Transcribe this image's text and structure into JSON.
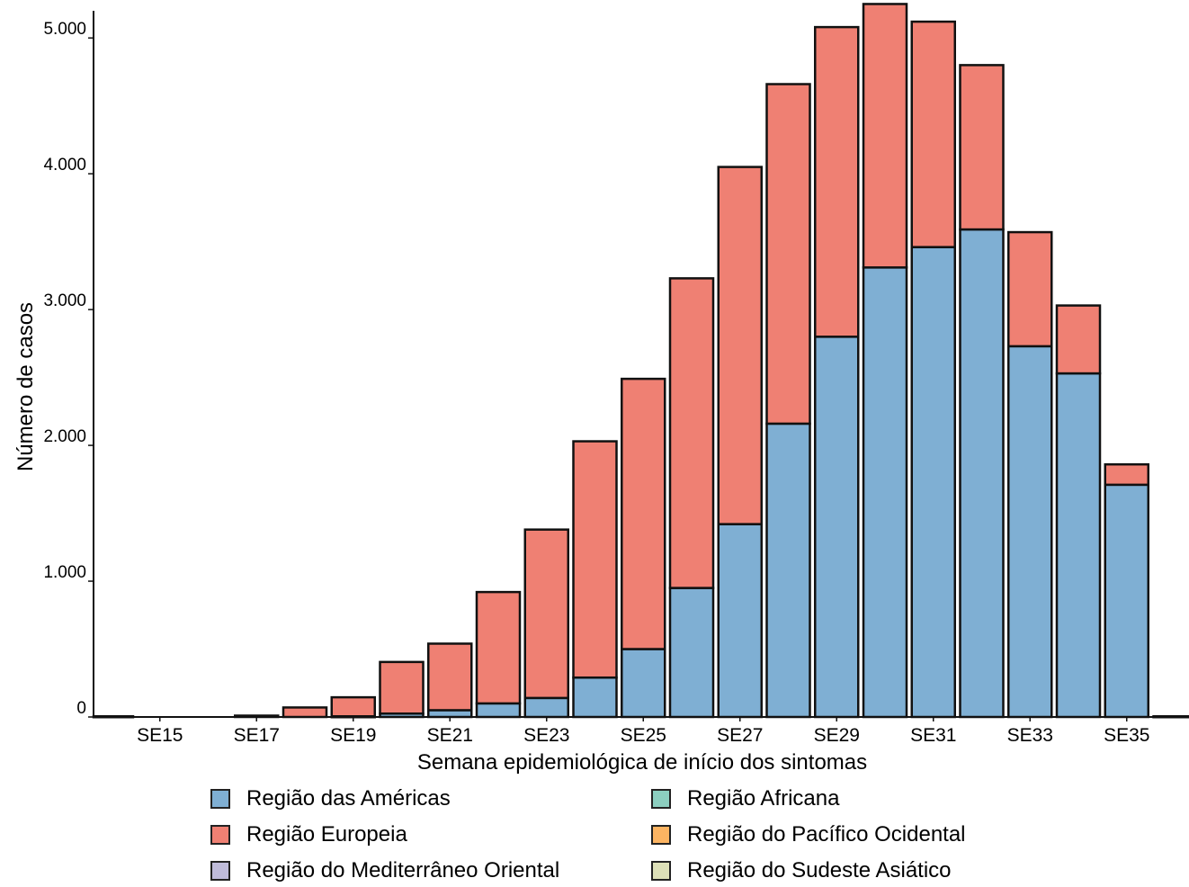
{
  "chart_data": {
    "type": "bar",
    "stacked": true,
    "xlabel": "Semana epidemiológica de início dos sintomas",
    "ylabel": "Número de casos",
    "ylim": [
      0,
      5200
    ],
    "y_ticks": [
      0,
      1000,
      2000,
      3000,
      4000,
      5000
    ],
    "y_tick_labels": [
      "0",
      "1.000",
      "2.000",
      "3.000",
      "4.000",
      "5.000"
    ],
    "categories": [
      "SE14",
      "SE15",
      "SE16",
      "SE17",
      "SE18",
      "SE19",
      "SE20",
      "SE21",
      "SE22",
      "SE23",
      "SE24",
      "SE25",
      "SE26",
      "SE27",
      "SE28",
      "SE29",
      "SE30",
      "SE31",
      "SE32",
      "SE33",
      "SE34",
      "SE35",
      "SE36"
    ],
    "x_tick_labels": [
      "SE15",
      "SE17",
      "SE19",
      "SE21",
      "SE23",
      "SE25",
      "SE27",
      "SE29",
      "SE31",
      "SE33",
      "SE35"
    ],
    "grid": false,
    "legend_position": "bottom",
    "series": [
      {
        "name": "Região das Américas",
        "color": "#7fafd3",
        "values": [
          0,
          0,
          0,
          0,
          0,
          5,
          25,
          50,
          100,
          140,
          290,
          500,
          950,
          1420,
          2160,
          2800,
          3310,
          3460,
          3590,
          2730,
          2530,
          1710,
          0
        ]
      },
      {
        "name": "Região Europeia",
        "color": "#ef8073",
        "values": [
          5,
          0,
          0,
          10,
          70,
          140,
          380,
          490,
          820,
          1240,
          1740,
          1990,
          2280,
          2630,
          2500,
          2280,
          1940,
          1660,
          1210,
          840,
          500,
          150,
          5
        ]
      },
      {
        "name": "Região do Mediterrâneo Oriental",
        "color": "#bfbbda",
        "values": [
          0,
          0,
          0,
          0,
          0,
          0,
          0,
          0,
          0,
          0,
          0,
          0,
          0,
          0,
          0,
          0,
          0,
          0,
          0,
          0,
          0,
          0,
          0
        ]
      },
      {
        "name": "Região Africana",
        "color": "#8ccfc0",
        "values": [
          0,
          0,
          0,
          0,
          0,
          0,
          0,
          0,
          0,
          0,
          0,
          0,
          0,
          0,
          0,
          0,
          0,
          0,
          0,
          0,
          0,
          0,
          0
        ]
      },
      {
        "name": "Região do Pacífico Ocidental",
        "color": "#fcb462",
        "values": [
          0,
          0,
          0,
          0,
          0,
          0,
          0,
          0,
          0,
          0,
          0,
          0,
          0,
          0,
          0,
          0,
          0,
          0,
          0,
          0,
          0,
          0,
          0
        ]
      },
      {
        "name": "Região do Sudeste Asiático",
        "color": "#dde0b8",
        "values": [
          0,
          0,
          0,
          0,
          0,
          0,
          0,
          0,
          0,
          0,
          0,
          0,
          0,
          0,
          0,
          0,
          0,
          0,
          0,
          0,
          0,
          0,
          0
        ]
      }
    ]
  },
  "legend": {
    "items": [
      {
        "label": "Região das Américas",
        "color": "#7fafd3"
      },
      {
        "label": "Região Africana",
        "color": "#8ccfc0"
      },
      {
        "label": "Região Europeia",
        "color": "#ef8073"
      },
      {
        "label": "Região do Pacífico Ocidental",
        "color": "#fcb462"
      },
      {
        "label": "Região do Mediterrâneo Oriental",
        "color": "#bfbbda"
      },
      {
        "label": "Região do Sudeste Asiático",
        "color": "#dde0b8"
      }
    ]
  }
}
